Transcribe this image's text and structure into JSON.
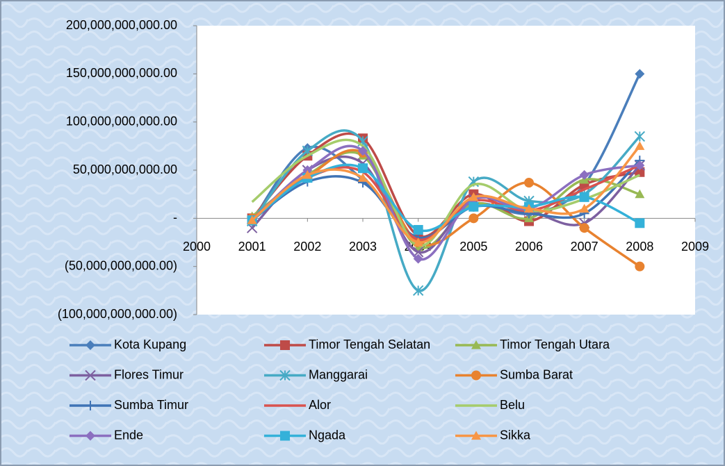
{
  "chart_data": {
    "type": "line",
    "smooth": true,
    "x": [
      2001,
      2002,
      2003,
      2004,
      2005,
      2006,
      2007,
      2008
    ],
    "xlim": [
      2000,
      2009
    ],
    "xticks": [
      2000,
      2001,
      2002,
      2003,
      2004,
      2005,
      2006,
      2007,
      2008,
      2009
    ],
    "ylim": [
      -100000000000,
      200000000000
    ],
    "yticks": [
      {
        "value": -100000000000,
        "label": "(100,000,000,000.00)"
      },
      {
        "value": -50000000000,
        "label": "(50,000,000,000.00)"
      },
      {
        "value": 0,
        "label": "-"
      },
      {
        "value": 50000000000,
        "label": "50,000,000,000.00"
      },
      {
        "value": 100000000000,
        "label": "100,000,000,000.00"
      },
      {
        "value": 150000000000,
        "label": "150,000,000,000.00"
      },
      {
        "value": 200000000000,
        "label": "200,000,000,000.00"
      }
    ],
    "grid": false,
    "legend": "bottom",
    "series": [
      {
        "name": "Kota Kupang",
        "color": "#4a7ebb",
        "marker": "diamond",
        "values": [
          -3000000000,
          73000000000,
          40000000000,
          -20000000000,
          15000000000,
          5000000000,
          35000000000,
          150000000000
        ]
      },
      {
        "name": "Timor Tengah Selatan",
        "color": "#be4b48",
        "marker": "square",
        "values": [
          0,
          65000000000,
          83000000000,
          -18000000000,
          25000000000,
          -3000000000,
          35000000000,
          48000000000
        ]
      },
      {
        "name": "Timor Tengah Utara",
        "color": "#98b954",
        "marker": "triangle",
        "values": [
          2000000000,
          45000000000,
          65000000000,
          -30000000000,
          15000000000,
          0,
          40000000000,
          25000000000
        ]
      },
      {
        "name": "Flores Timur",
        "color": "#7d60a0",
        "marker": "x",
        "values": [
          -10000000000,
          50000000000,
          57000000000,
          -35000000000,
          20000000000,
          8000000000,
          -5000000000,
          55000000000
        ]
      },
      {
        "name": "Manggarai",
        "color": "#46aac5",
        "marker": "star",
        "values": [
          -3000000000,
          70000000000,
          80000000000,
          -75000000000,
          38000000000,
          18000000000,
          25000000000,
          85000000000
        ]
      },
      {
        "name": "Sumba Barat",
        "color": "#e8822f",
        "marker": "circle",
        "values": [
          0,
          43000000000,
          68000000000,
          -25000000000,
          0,
          37000000000,
          -10000000000,
          -50000000000
        ]
      },
      {
        "name": "Sumba Timur",
        "color": "#3f73b5",
        "marker": "plus",
        "values": [
          -2000000000,
          38000000000,
          37000000000,
          -20000000000,
          12000000000,
          5000000000,
          5000000000,
          60000000000
        ]
      },
      {
        "name": "Alor",
        "color": "#d9534f",
        "marker": "none",
        "values": [
          -2000000000,
          42000000000,
          48000000000,
          -22000000000,
          18000000000,
          8000000000,
          30000000000,
          55000000000
        ]
      },
      {
        "name": "Belu",
        "color": "#a5cc6b",
        "marker": "none",
        "values": [
          17000000000,
          65000000000,
          75000000000,
          -28000000000,
          35000000000,
          8000000000,
          20000000000,
          45000000000
        ]
      },
      {
        "name": "Ende",
        "color": "#8b6fc0",
        "marker": "diamond",
        "values": [
          -2000000000,
          50000000000,
          70000000000,
          -42000000000,
          20000000000,
          10000000000,
          45000000000,
          55000000000
        ]
      },
      {
        "name": "Ngada",
        "color": "#34b1d9",
        "marker": "square",
        "values": [
          -2000000000,
          42000000000,
          52000000000,
          -12000000000,
          12000000000,
          12000000000,
          22000000000,
          -5000000000
        ]
      },
      {
        "name": "Sikka",
        "color": "#f79646",
        "marker": "triangle",
        "values": [
          -2000000000,
          45000000000,
          42000000000,
          -25000000000,
          22000000000,
          10000000000,
          10000000000,
          75000000000
        ]
      }
    ]
  }
}
